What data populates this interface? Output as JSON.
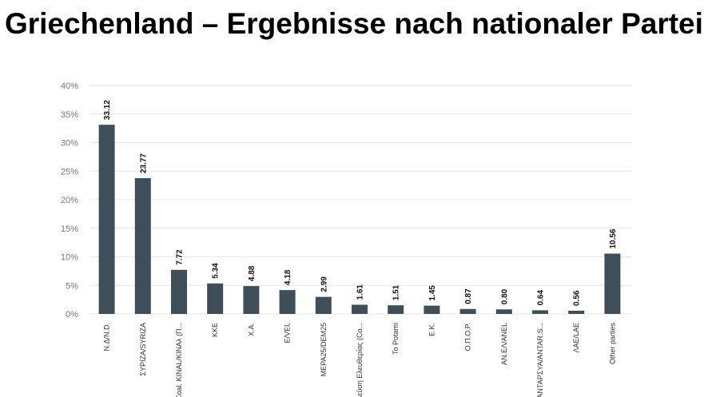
{
  "header": {
    "title": "Griechenland – Ergebnisse nach nationaler Partei"
  },
  "colors": {
    "bar": "#3f4f5a",
    "grid": "#e6e6e6"
  },
  "chart_data": {
    "type": "bar",
    "title": "",
    "xlabel": "",
    "ylabel": "",
    "categories": [
      "N.Δ/N.D.",
      "ΣΥΡΙΖΑ/SYRIZA",
      "Coal. KINAL/KINAλ (Π...",
      "KKE",
      "X.A.",
      "E/VEL",
      "MEPA25/DEM25",
      "Πλεύση Ελευθερίας (Co...",
      "To Potami",
      "E.K.",
      "O.Π.Ο.Ρ.",
      "AN.EΛ/ANEL",
      "ANTAPΣYA/ANTAR.S...",
      "ΛAE/LAE",
      "Other parties"
    ],
    "values": [
      33.12,
      23.77,
      7.72,
      5.34,
      4.88,
      4.18,
      2.99,
      1.61,
      1.51,
      1.45,
      0.87,
      0.8,
      0.64,
      0.56,
      10.56
    ],
    "data_labels": [
      "33.12",
      "23.77",
      "7.72",
      "5.34",
      "4.88",
      "4.18",
      "2.99",
      "1.61",
      "1.51",
      "1.45",
      "0.87",
      "0.80",
      "0.64",
      "0.56",
      "10.56"
    ],
    "ylim": [
      0,
      40
    ],
    "yticks": [
      0,
      5,
      10,
      15,
      20,
      25,
      30,
      35,
      40
    ],
    "ytick_labels": [
      "0%",
      "5%",
      "10%",
      "15%",
      "20%",
      "25%",
      "30%",
      "35%",
      "40%"
    ],
    "grid": true,
    "legend": "none"
  }
}
